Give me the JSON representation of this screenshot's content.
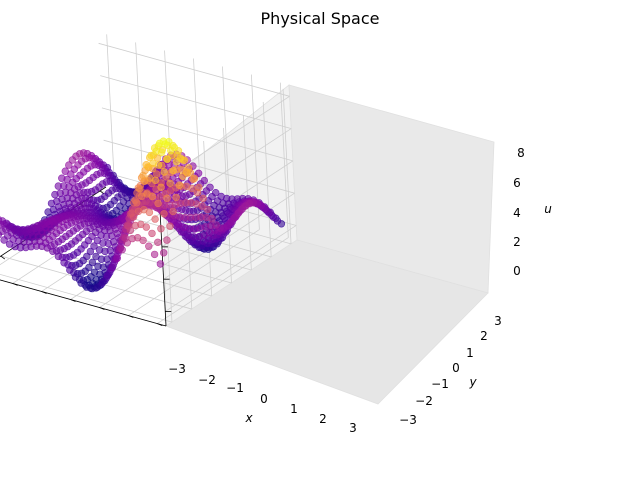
{
  "chart_data": {
    "type": "scatter",
    "projection": "3d",
    "title": "Physical Space",
    "xlabel": "x",
    "ylabel": "y",
    "zlabel": "u",
    "xlim": [
      -3.3,
      3.3
    ],
    "ylim": [
      -3.3,
      3.3
    ],
    "zlim": [
      -0.9,
      8.7
    ],
    "xticks": [
      -3,
      -2,
      -1,
      0,
      1,
      2,
      3
    ],
    "yticks": [
      -3,
      -2,
      -1,
      0,
      1,
      2,
      3
    ],
    "zticks": [
      0,
      2,
      4,
      6,
      8
    ],
    "xtick_labels": [
      "−3",
      "−2",
      "−1",
      "0",
      "1",
      "2",
      "3"
    ],
    "ytick_labels": [
      "−3",
      "−2",
      "−1",
      "0",
      "1",
      "2",
      "3"
    ],
    "ztick_labels": [
      "0",
      "2",
      "4",
      "6",
      "8"
    ],
    "colormap": "plasma",
    "grid": true,
    "series": [
      {
        "description_of_values": "u(x,y) sampled on a grid over [-3,3]x[-3,3]",
        "x_range": [
          -3,
          3
        ],
        "y_range": [
          -3,
          3
        ],
        "u_max": 8,
        "u_min": -0.5
      }
    ]
  }
}
